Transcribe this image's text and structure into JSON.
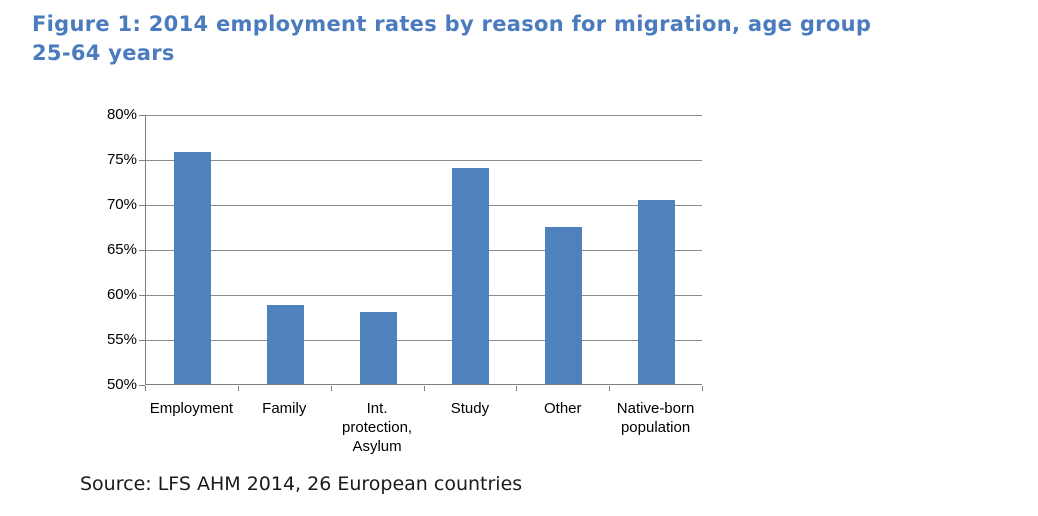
{
  "figure": {
    "title": "Figure 1: 2014 employment rates by reason for migration, age group\n25-64 years",
    "source_note": "Source: LFS AHM 2014, 26 European countries"
  },
  "colors": {
    "title_blue": "#4A7BBE",
    "bar_blue": "#4F81BD",
    "gridline_gray": "#8C8C8C",
    "axis_gray": "#7F7F7F",
    "label_black": "#000000",
    "background": "#FFFFFF"
  },
  "chart_data": {
    "type": "bar",
    "title": "Figure 1: 2014 employment rates by reason for migration, age group 25-64 years",
    "categories": [
      "Employment",
      "Family",
      "Int. protection, Asylum",
      "Study",
      "Other",
      "Native-born population"
    ],
    "values": [
      75.8,
      58.8,
      58.0,
      74.0,
      67.5,
      70.5
    ],
    "unit": "%",
    "xlabel": "",
    "ylabel": "",
    "ylim": [
      50,
      80
    ],
    "yticks": [
      50,
      55,
      60,
      65,
      70,
      75,
      80
    ],
    "ytick_suffix": "%",
    "grid": true,
    "legend_position": "none",
    "source": "Source: LFS AHM 2014, 26 European countries"
  }
}
